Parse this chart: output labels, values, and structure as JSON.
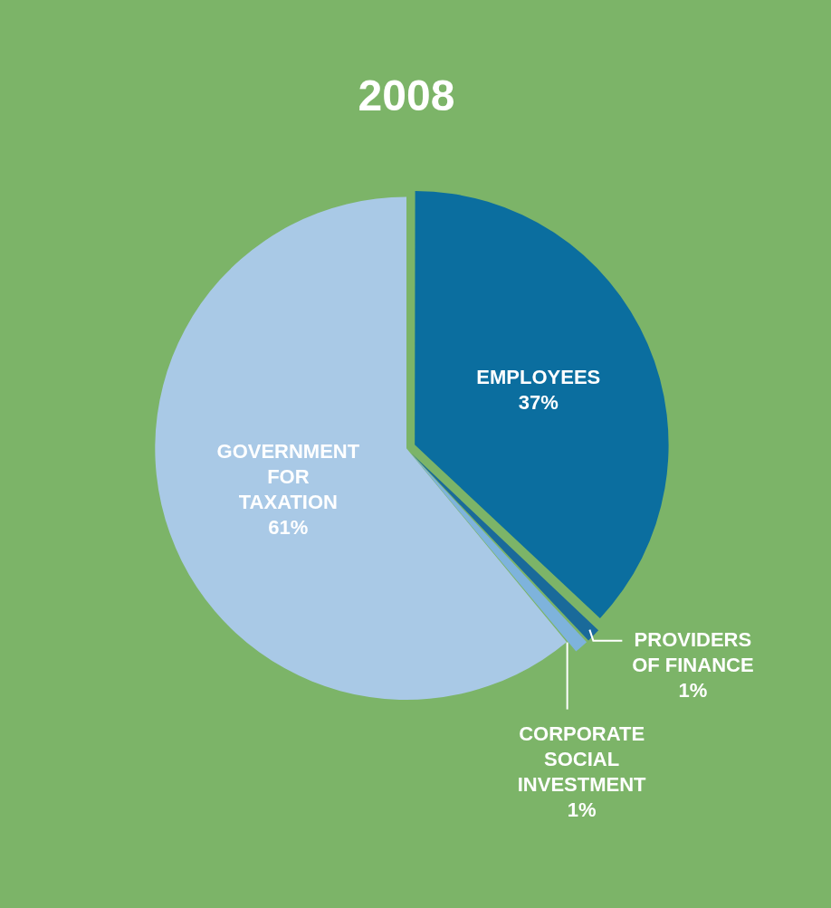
{
  "chart_data": {
    "type": "pie",
    "title": "2008",
    "categories": [
      "EMPLOYEES",
      "PROVIDERS OF FINANCE",
      "CORPORATE SOCIAL INVESTMENT",
      "GOVERNMENT FOR TAXATION"
    ],
    "values": [
      37,
      1,
      1,
      61
    ],
    "value_labels": [
      "37%",
      "1%",
      "1%",
      "61%"
    ],
    "colors": [
      "#0b6e9f",
      "#1a6a9a",
      "#7eb3dc",
      "#a9c9e6"
    ],
    "legend": false
  }
}
